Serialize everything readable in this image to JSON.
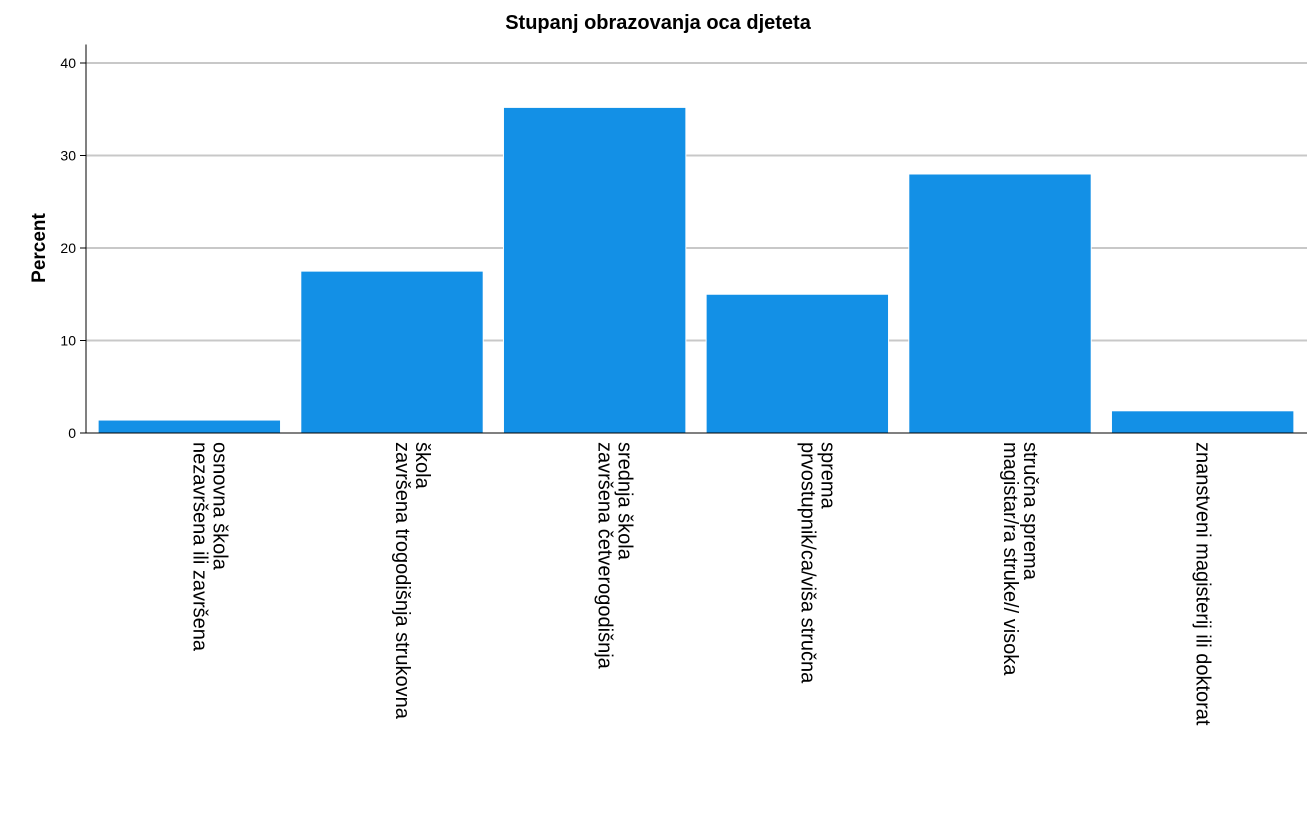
{
  "chart_data": {
    "type": "bar",
    "title": "Stupanj obrazovanja oca djeteta",
    "xlabel": "",
    "ylabel": "Percent",
    "ylim": [
      0,
      42
    ],
    "yticks": [
      0,
      10,
      20,
      30,
      40
    ],
    "grid": true,
    "categories": [
      [
        "nezavršena ili završena",
        "osnovna škola"
      ],
      [
        "završena trogodišnja strukovna",
        "škola"
      ],
      [
        "završena četverogodišnja",
        "srednja škola"
      ],
      [
        "prvostupnik/ca/viša stručna",
        "sprema"
      ],
      [
        "magistar/ra struke// visoka",
        "stručna sprema"
      ],
      [
        "znanstveni magisterij ili doktorat"
      ]
    ],
    "values": [
      1.4,
      17.5,
      35.2,
      15.0,
      28.0,
      2.4
    ],
    "colors": {
      "bar": "#1390e6",
      "grid": "#c8c8c8",
      "axis": "#000000"
    }
  }
}
